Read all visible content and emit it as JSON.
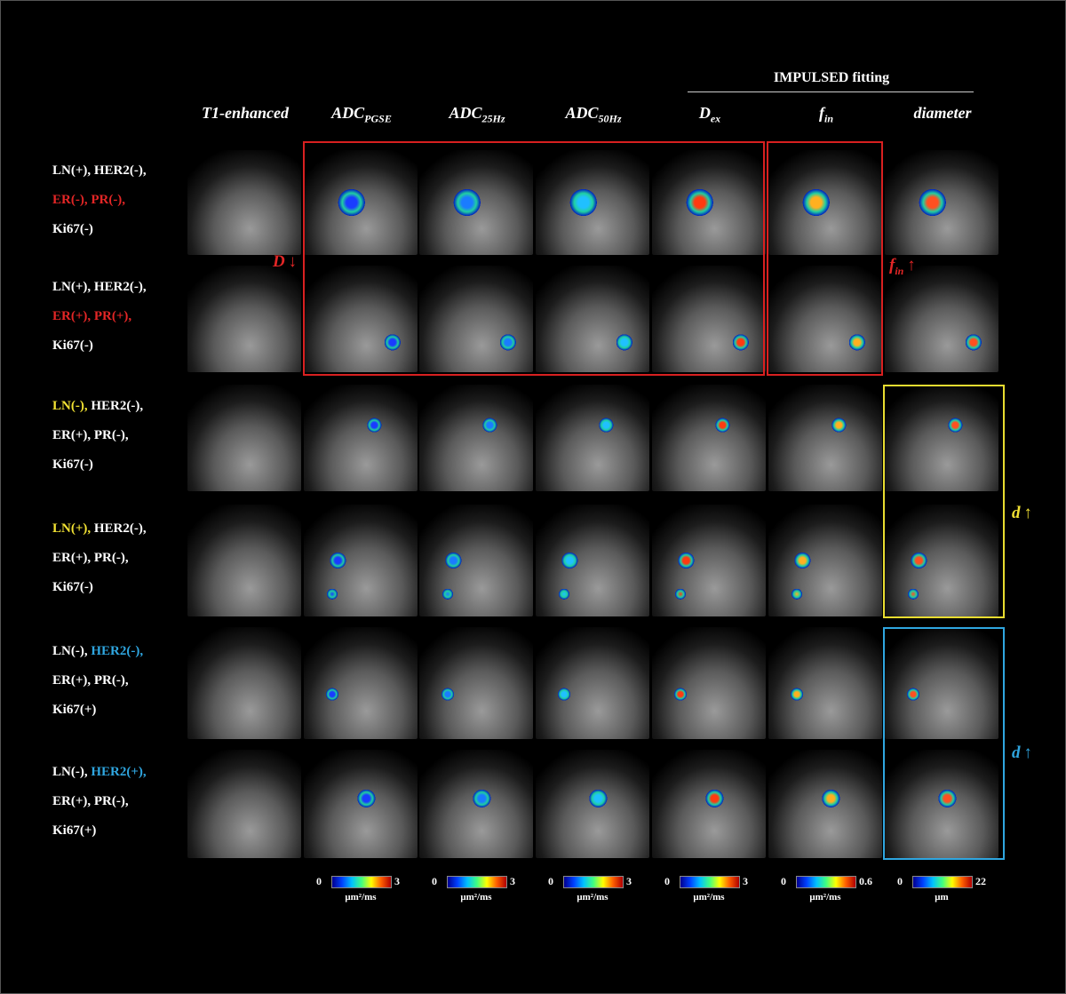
{
  "header": {
    "group_title": "IMPULSED fitting"
  },
  "columns": [
    {
      "main": "T1-enhanced"
    },
    {
      "main": "ADC",
      "sub": "PGSE"
    },
    {
      "main": "ADC",
      "sub": "25Hz"
    },
    {
      "main": "ADC",
      "sub": "50Hz"
    },
    {
      "main": "D",
      "sub": "ex"
    },
    {
      "main": "f",
      "sub": "in"
    },
    {
      "main": "diameter"
    }
  ],
  "rows": [
    {
      "lines": [
        [
          {
            "text": "LN(+), HER2(-),"
          }
        ],
        [
          {
            "text": "ER(-), PR(-),",
            "color": "#e32626"
          }
        ],
        [
          {
            "text": "Ki67(-)"
          }
        ]
      ]
    },
    {
      "lines": [
        [
          {
            "text": "LN(+), HER2(-),"
          }
        ],
        [
          {
            "text": "ER(+), PR(+),",
            "color": "#e32626"
          }
        ],
        [
          {
            "text": "Ki67(-)"
          }
        ]
      ]
    },
    {
      "lines": [
        [
          {
            "text": "LN(-),",
            "color": "#f2e233"
          },
          {
            "text": " HER2(-),"
          }
        ],
        [
          {
            "text": "ER(+), PR(-),"
          }
        ],
        [
          {
            "text": "Ki67(-)"
          }
        ]
      ]
    },
    {
      "lines": [
        [
          {
            "text": "LN(+),",
            "color": "#f2e233"
          },
          {
            "text": " HER2(-),"
          }
        ],
        [
          {
            "text": "ER(+), PR(-),"
          }
        ],
        [
          {
            "text": "Ki67(-)"
          }
        ]
      ]
    },
    {
      "lines": [
        [
          {
            "text": "LN(-), "
          },
          {
            "text": "HER2(-),",
            "color": "#2fa6e0"
          }
        ],
        [
          {
            "text": "ER(+), PR(-),"
          }
        ],
        [
          {
            "text": "Ki67(+)"
          }
        ]
      ]
    },
    {
      "lines": [
        [
          {
            "text": "LN(-), "
          },
          {
            "text": "HER2(+),",
            "color": "#2fa6e0"
          }
        ],
        [
          {
            "text": "ER(+), PR(-),"
          }
        ],
        [
          {
            "text": "Ki67(+)"
          }
        ]
      ]
    }
  ],
  "annotations": [
    {
      "text": "D",
      "arrow": "↓",
      "color": "#e32626"
    },
    {
      "text": "f",
      "sub": "in",
      "arrow": "↑",
      "color": "#e32626"
    },
    {
      "text": "d",
      "arrow": "↑",
      "color": "#f2e233"
    },
    {
      "text": "d",
      "arrow": "↑",
      "color": "#2fa6e0"
    }
  ],
  "colorbars": [
    {
      "min": 0,
      "max": 3,
      "unit": "μm²/ms"
    },
    {
      "min": 0,
      "max": 3,
      "unit": "μm²/ms"
    },
    {
      "min": 0,
      "max": 3,
      "unit": "μm²/ms"
    },
    {
      "min": 0,
      "max": 3,
      "unit": "μm²/ms"
    },
    {
      "min": 0,
      "max": 0.6,
      "unit": "μm²/ms"
    },
    {
      "min": 0,
      "max": 22,
      "unit": "μm"
    }
  ]
}
